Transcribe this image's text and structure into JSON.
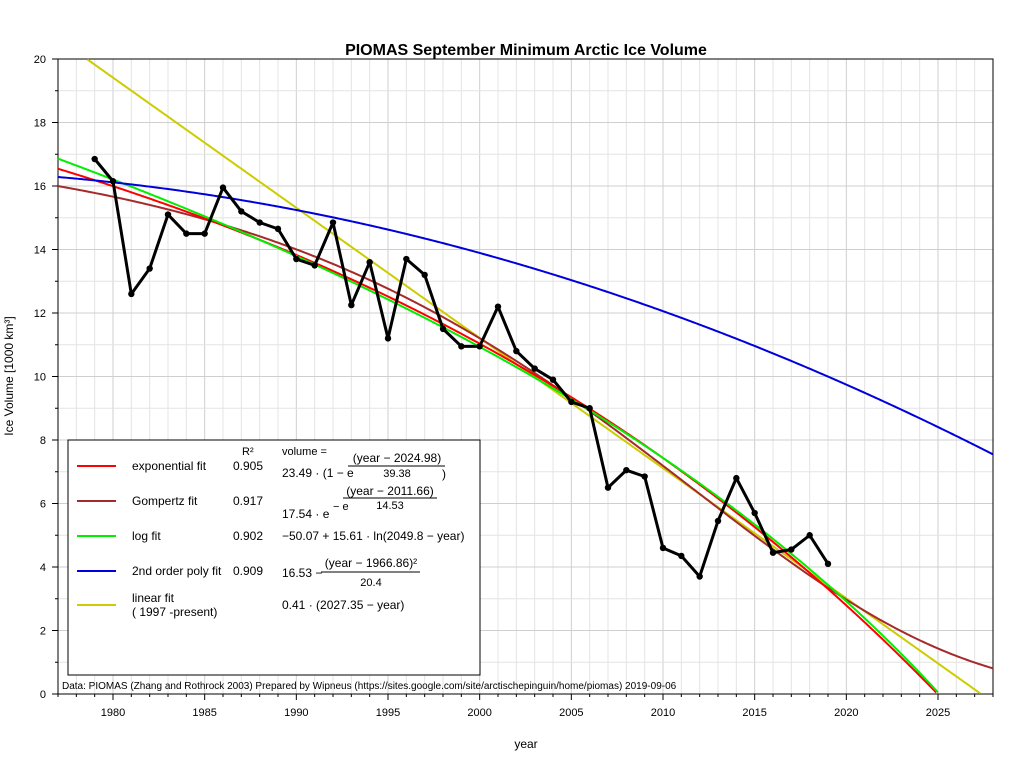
{
  "chart_data": {
    "type": "line",
    "title": "PIOMAS September Minimum Arctic Ice Volume",
    "xlabel": "year",
    "ylabel": "Ice Volume [1000 km³]",
    "xlim": [
      1977,
      2028
    ],
    "ylim": [
      0,
      20
    ],
    "xticks": [
      1980,
      1985,
      1990,
      1995,
      2000,
      2005,
      2010,
      2015,
      2020,
      2025
    ],
    "yticks": [
      0,
      2,
      4,
      6,
      8,
      10,
      12,
      14,
      16,
      18,
      20
    ],
    "grid": true,
    "legend_position": "bottom-left",
    "data_series": {
      "name": "",
      "color": "#000000",
      "x": [
        1979,
        1980,
        1981,
        1982,
        1983,
        1984,
        1985,
        1986,
        1987,
        1988,
        1989,
        1990,
        1991,
        1992,
        1993,
        1994,
        1995,
        1996,
        1997,
        1998,
        1999,
        2000,
        2001,
        2002,
        2003,
        2004,
        2005,
        2006,
        2007,
        2008,
        2009,
        2010,
        2011,
        2012,
        2013,
        2014,
        2015,
        2016,
        2017,
        2018,
        2019
      ],
      "y": [
        16.85,
        16.15,
        12.6,
        13.4,
        15.1,
        14.5,
        14.5,
        15.95,
        15.2,
        14.85,
        14.65,
        13.7,
        13.5,
        14.85,
        12.25,
        13.6,
        11.2,
        13.7,
        13.2,
        11.5,
        10.95,
        10.95,
        12.2,
        10.8,
        10.25,
        9.9,
        9.2,
        9.0,
        6.5,
        7.05,
        6.85,
        4.6,
        4.35,
        3.7,
        5.45,
        6.8,
        5.7,
        4.45,
        4.55,
        5.0,
        4.1
      ]
    },
    "fits": [
      {
        "name": "exponential fit",
        "color": "#ff0000",
        "r2": "0.905"
      },
      {
        "name": "Gompertz fit",
        "color": "#a52a2a",
        "r2": "0.917"
      },
      {
        "name": "log fit",
        "color": "#00ee00",
        "r2": "0.902"
      },
      {
        "name": "2nd order poly fit",
        "color": "#0000dd",
        "r2": "0.909"
      },
      {
        "name": "linear fit",
        "name2": "( 1997 -present)",
        "color": "#cccc00",
        "r2": ""
      }
    ],
    "legend_headers": {
      "r2": "R²",
      "volume": "volume ="
    },
    "equations": {
      "exp_coef": "23.49 · (1 − e",
      "exp_num": "(year − 2024.98)",
      "exp_den": "39.38",
      "exp_close": ")",
      "gomp_coef": "17.54 · e",
      "gomp_sup": "− e",
      "gomp_num": "(year − 2011.66)",
      "gomp_den": "14.53",
      "log_eq": "−50.07 + 15.61 · ln(2049.8 − year)",
      "poly_coef": "16.53 −",
      "poly_num": "(year − 1966.86)²",
      "poly_den": "20.4",
      "lin_eq": "0.41 · (2027.35 − year)"
    },
    "credit": "Data: PIOMAS (Zhang and Rothrock 2003) Prepared by Wipneus (https://sites.google.com/site/arctischepinguin/home/piomas)     2019-09-06"
  }
}
